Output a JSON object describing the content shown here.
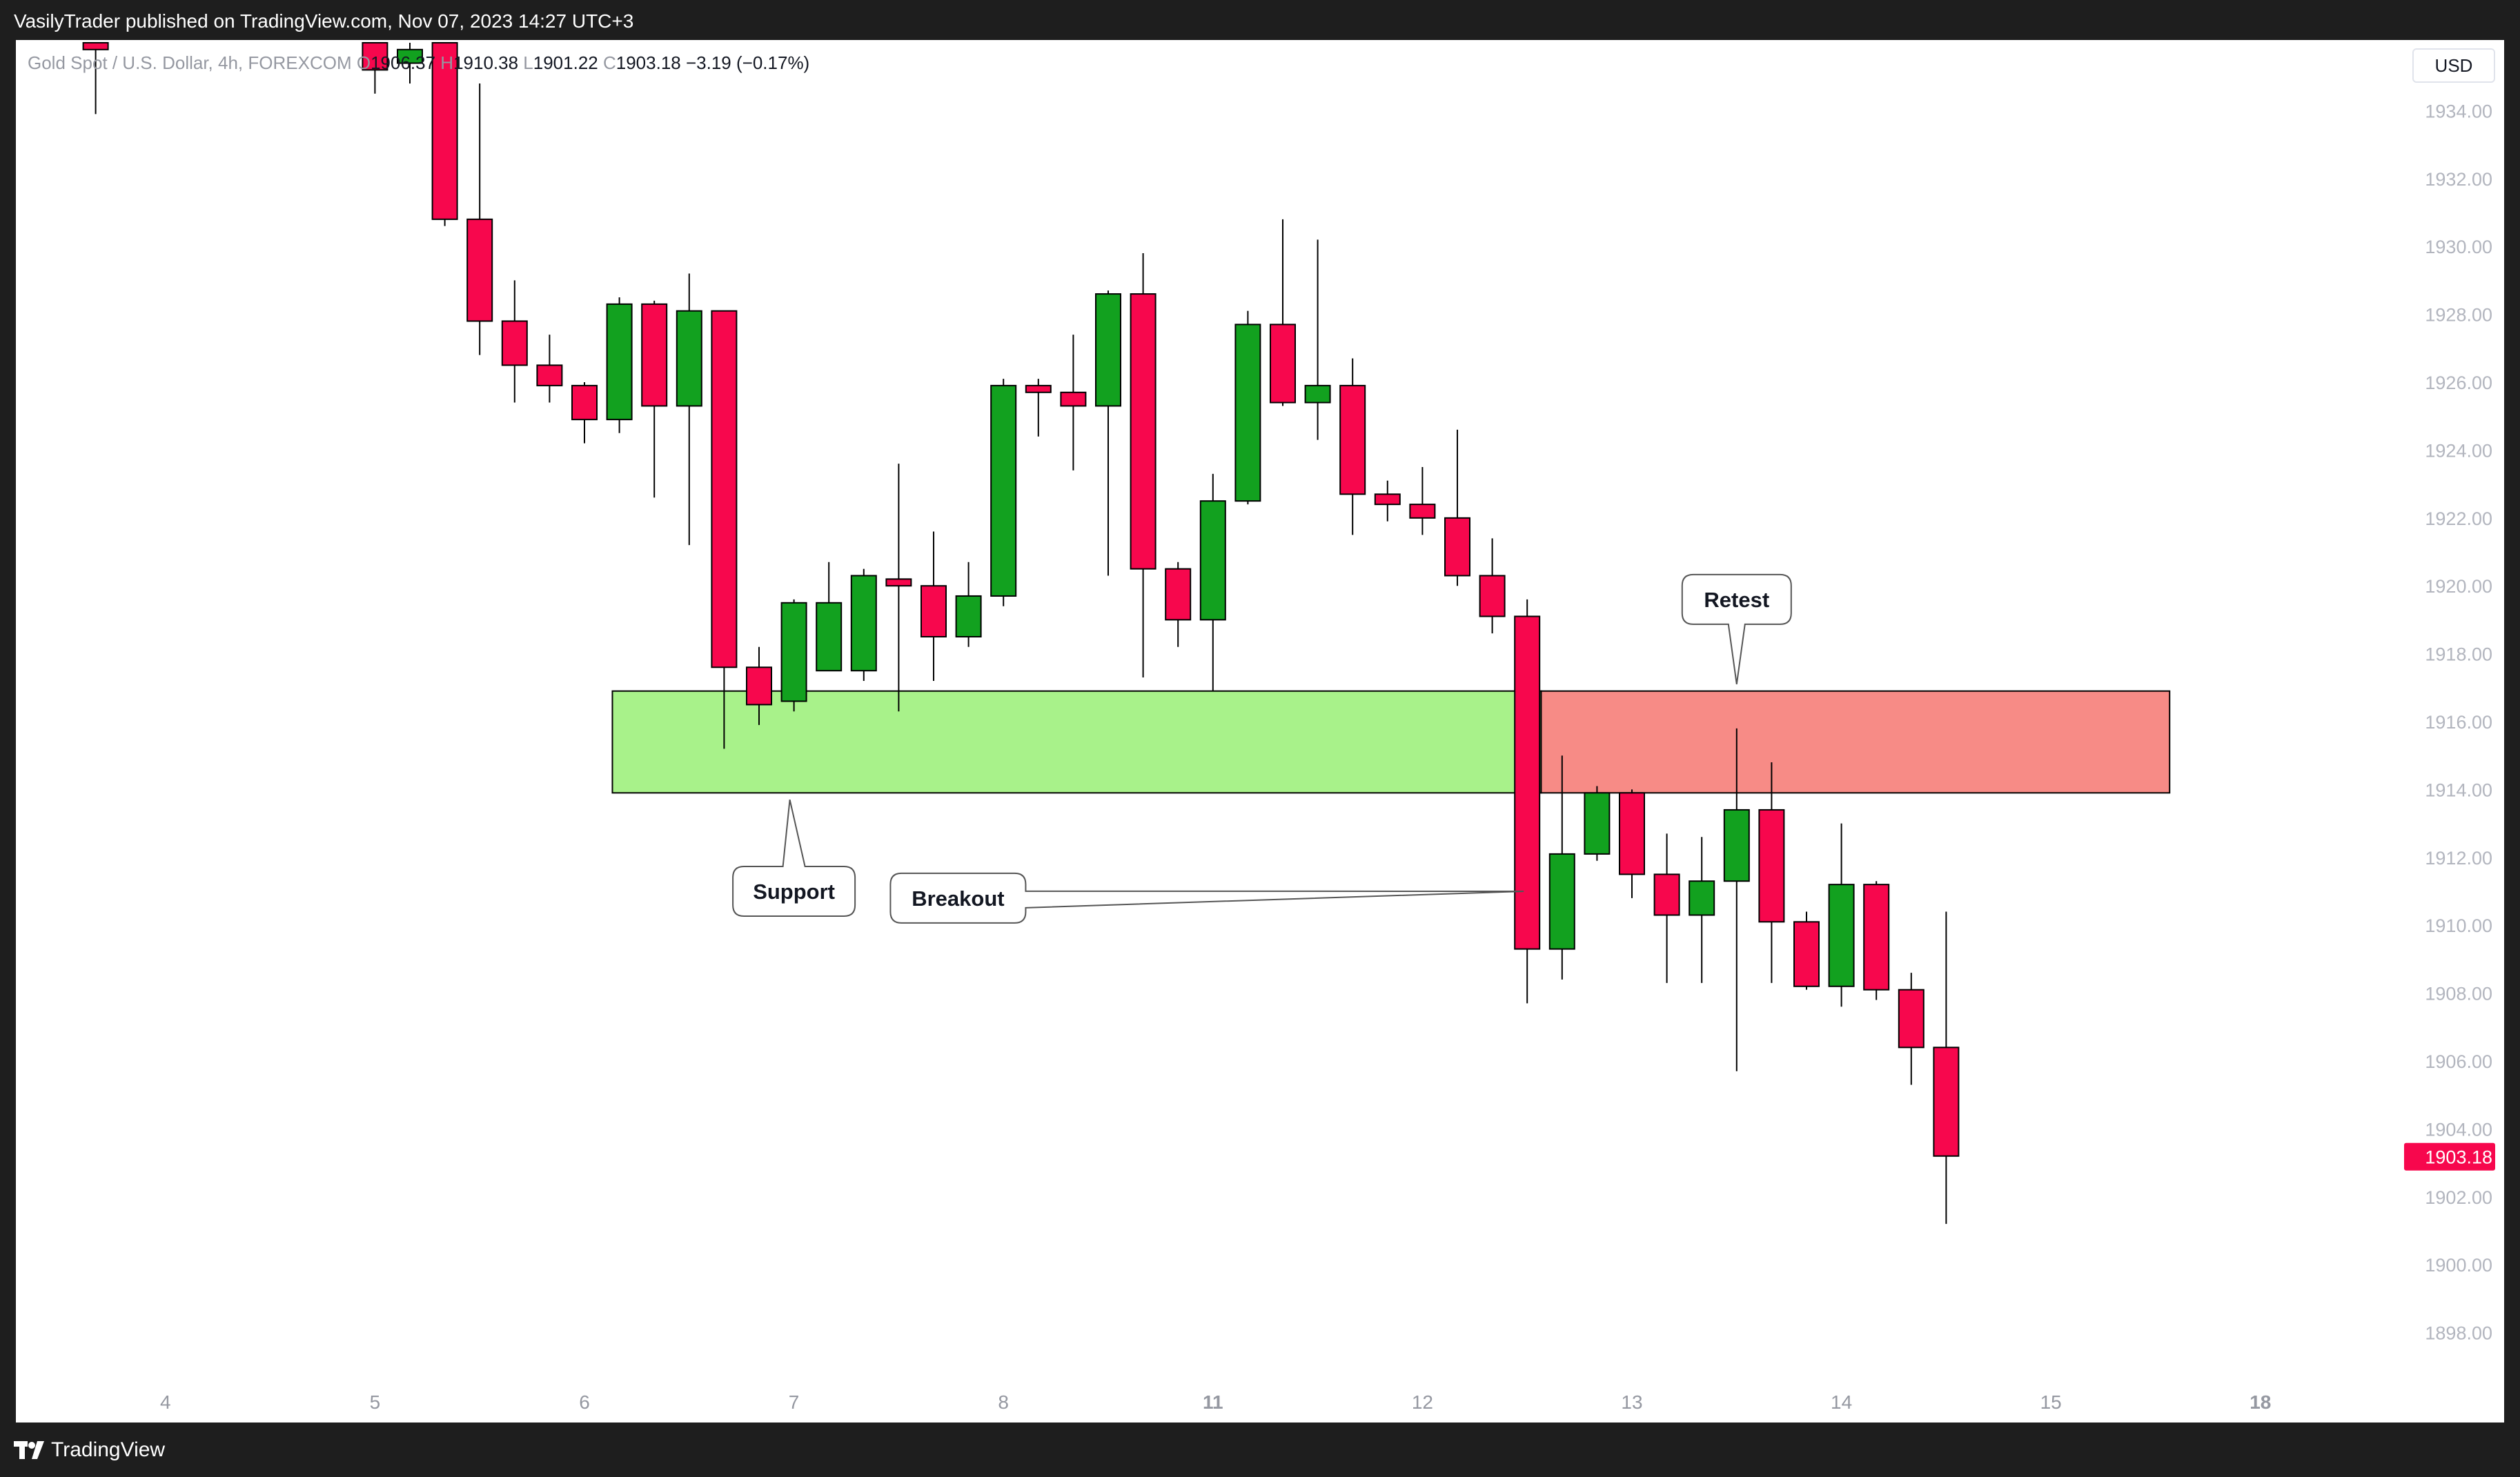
{
  "banner": {
    "published_text": "VasilyTrader published on TradingView.com, Nov 07, 2023 14:27 UTC+3"
  },
  "footer": {
    "brand": "TradingView",
    "logo_icon": "tradingview-logo-icon"
  },
  "legend": {
    "symbol": "Gold Spot / U.S. Dollar, 4h, FOREXCOM",
    "o_label": "O",
    "o_value": "1906.37",
    "h_label": "H",
    "h_value": "1910.38",
    "l_label": "L",
    "l_value": "1901.22",
    "c_label": "C",
    "c_value": "1903.18",
    "change": "−3.19 (−0.17%)"
  },
  "currency": "USD",
  "colors": {
    "up": "#12a11f",
    "down": "#f7074d",
    "support_zone": "#a8f28a",
    "resistance_zone": "#f78b86",
    "last_price_badge": "#f7074d"
  },
  "chart_data": {
    "type": "candlestick",
    "timeframe": "4h",
    "ylim": [
      1896.5,
      1935.5
    ],
    "y_ticks": [
      "1898.00",
      "1900.00",
      "1902.00",
      "1904.00",
      "1906.00",
      "1908.00",
      "1910.00",
      "1912.00",
      "1914.00",
      "1916.00",
      "1918.00",
      "1920.00",
      "1922.00",
      "1924.00",
      "1926.00",
      "1928.00",
      "1930.00",
      "1932.00",
      "1934.00"
    ],
    "x_ticks": [
      {
        "label": "4",
        "index": -7
      },
      {
        "label": "5",
        "index": -1
      },
      {
        "label": "6",
        "index": 5
      },
      {
        "label": "7",
        "index": 11
      },
      {
        "label": "8",
        "index": 17
      },
      {
        "label": "11",
        "index": 23,
        "bold": true
      },
      {
        "label": "12",
        "index": 29
      },
      {
        "label": "13",
        "index": 35
      },
      {
        "label": "14",
        "index": 41
      },
      {
        "label": "15",
        "index": 47
      },
      {
        "label": "18",
        "index": 53,
        "bold": true
      }
    ],
    "last_price": "1903.18",
    "candles": [
      {
        "i": -9,
        "o": 1936.0,
        "h": 1936.0,
        "l": 1933.9,
        "c": 1935.8
      },
      {
        "i": -1,
        "o": 1936.0,
        "h": 1936.0,
        "l": 1934.5,
        "c": 1935.2
      },
      {
        "i": 0,
        "o": 1935.4,
        "h": 1936.0,
        "l": 1934.8,
        "c": 1935.8
      },
      {
        "i": 1,
        "o": 1936.0,
        "h": 1936.0,
        "l": 1930.6,
        "c": 1930.8
      },
      {
        "i": 2,
        "o": 1930.8,
        "h": 1934.8,
        "l": 1926.8,
        "c": 1927.8
      },
      {
        "i": 3,
        "o": 1927.8,
        "h": 1929.0,
        "l": 1925.4,
        "c": 1926.5
      },
      {
        "i": 4,
        "o": 1926.5,
        "h": 1927.4,
        "l": 1925.4,
        "c": 1925.9
      },
      {
        "i": 5,
        "o": 1925.9,
        "h": 1926.0,
        "l": 1924.2,
        "c": 1924.9
      },
      {
        "i": 6,
        "o": 1924.9,
        "h": 1928.5,
        "l": 1924.5,
        "c": 1928.3
      },
      {
        "i": 7,
        "o": 1928.3,
        "h": 1928.4,
        "l": 1922.6,
        "c": 1925.3
      },
      {
        "i": 8,
        "o": 1925.3,
        "h": 1929.2,
        "l": 1921.2,
        "c": 1928.1
      },
      {
        "i": 9,
        "o": 1928.1,
        "h": 1928.1,
        "l": 1915.2,
        "c": 1917.6
      },
      {
        "i": 10,
        "o": 1917.6,
        "h": 1918.2,
        "l": 1915.9,
        "c": 1916.5
      },
      {
        "i": 11,
        "o": 1916.6,
        "h": 1919.6,
        "l": 1916.3,
        "c": 1919.5
      },
      {
        "i": 12,
        "o": 1917.5,
        "h": 1920.7,
        "l": 1917.5,
        "c": 1919.5
      },
      {
        "i": 13,
        "o": 1917.5,
        "h": 1920.5,
        "l": 1917.2,
        "c": 1920.3
      },
      {
        "i": 14,
        "o": 1920.2,
        "h": 1923.6,
        "l": 1916.3,
        "c": 1920.0
      },
      {
        "i": 15,
        "o": 1920.0,
        "h": 1921.6,
        "l": 1917.2,
        "c": 1918.5
      },
      {
        "i": 16,
        "o": 1918.5,
        "h": 1920.7,
        "l": 1918.2,
        "c": 1919.7
      },
      {
        "i": 17,
        "o": 1919.7,
        "h": 1926.1,
        "l": 1919.4,
        "c": 1925.9
      },
      {
        "i": 18,
        "o": 1925.9,
        "h": 1926.1,
        "l": 1924.4,
        "c": 1925.7
      },
      {
        "i": 19,
        "o": 1925.7,
        "h": 1927.4,
        "l": 1923.4,
        "c": 1925.3
      },
      {
        "i": 20,
        "o": 1925.3,
        "h": 1928.7,
        "l": 1920.3,
        "c": 1928.6
      },
      {
        "i": 21,
        "o": 1928.6,
        "h": 1929.8,
        "l": 1917.3,
        "c": 1920.5
      },
      {
        "i": 22,
        "o": 1920.5,
        "h": 1920.7,
        "l": 1918.2,
        "c": 1919.0
      },
      {
        "i": 23,
        "o": 1919.0,
        "h": 1923.3,
        "l": 1916.9,
        "c": 1922.5
      },
      {
        "i": 24,
        "o": 1922.5,
        "h": 1928.1,
        "l": 1922.4,
        "c": 1927.7
      },
      {
        "i": 25,
        "o": 1927.7,
        "h": 1930.8,
        "l": 1925.3,
        "c": 1925.4
      },
      {
        "i": 26,
        "o": 1925.4,
        "h": 1930.2,
        "l": 1924.3,
        "c": 1925.9
      },
      {
        "i": 27,
        "o": 1925.9,
        "h": 1926.7,
        "l": 1921.5,
        "c": 1922.7
      },
      {
        "i": 28,
        "o": 1922.7,
        "h": 1923.1,
        "l": 1921.9,
        "c": 1922.4
      },
      {
        "i": 29,
        "o": 1922.4,
        "h": 1923.5,
        "l": 1921.5,
        "c": 1922.0
      },
      {
        "i": 30,
        "o": 1922.0,
        "h": 1924.6,
        "l": 1920.0,
        "c": 1920.3
      },
      {
        "i": 31,
        "o": 1920.3,
        "h": 1921.4,
        "l": 1918.6,
        "c": 1919.1
      },
      {
        "i": 32,
        "o": 1919.1,
        "h": 1919.6,
        "l": 1907.7,
        "c": 1909.3
      },
      {
        "i": 33,
        "o": 1909.3,
        "h": 1915.0,
        "l": 1908.4,
        "c": 1912.1
      },
      {
        "i": 34,
        "o": 1912.1,
        "h": 1914.1,
        "l": 1911.9,
        "c": 1913.9
      },
      {
        "i": 35,
        "o": 1913.9,
        "h": 1914.0,
        "l": 1910.8,
        "c": 1911.5
      },
      {
        "i": 36,
        "o": 1911.5,
        "h": 1912.7,
        "l": 1908.3,
        "c": 1910.3
      },
      {
        "i": 37,
        "o": 1910.3,
        "h": 1912.6,
        "l": 1908.3,
        "c": 1911.3
      },
      {
        "i": 38,
        "o": 1911.3,
        "h": 1915.8,
        "l": 1905.7,
        "c": 1913.4
      },
      {
        "i": 39,
        "o": 1913.4,
        "h": 1914.8,
        "l": 1908.3,
        "c": 1910.1
      },
      {
        "i": 40,
        "o": 1910.1,
        "h": 1910.4,
        "l": 1908.1,
        "c": 1908.2
      },
      {
        "i": 41,
        "o": 1908.2,
        "h": 1913.0,
        "l": 1907.6,
        "c": 1911.2
      },
      {
        "i": 42,
        "o": 1911.2,
        "h": 1911.3,
        "l": 1907.8,
        "c": 1908.1
      },
      {
        "i": 43,
        "o": 1908.1,
        "h": 1908.6,
        "l": 1905.3,
        "c": 1906.4
      },
      {
        "i": 44,
        "o": 1906.4,
        "h": 1910.4,
        "l": 1901.2,
        "c": 1903.2
      }
    ],
    "zones": [
      {
        "name": "support",
        "from_index": 5.8,
        "to_index": 32.4,
        "low": 1913.9,
        "high": 1916.9
      },
      {
        "name": "resistance",
        "from_index": 32.4,
        "to_index": 50.4,
        "low": 1913.9,
        "high": 1916.9
      }
    ],
    "annotations": [
      {
        "text": "Support",
        "index": 11,
        "price": 1911.0,
        "pointer": "up",
        "target_price": 1913.7
      },
      {
        "text": "Breakout",
        "index": 15.7,
        "price": 1910.8,
        "pointer": "right",
        "target_index": 31.9,
        "target_price": 1911.0
      },
      {
        "text": "Retest",
        "index": 38,
        "price": 1919.6,
        "pointer": "down",
        "target_price": 1917.1
      }
    ]
  }
}
